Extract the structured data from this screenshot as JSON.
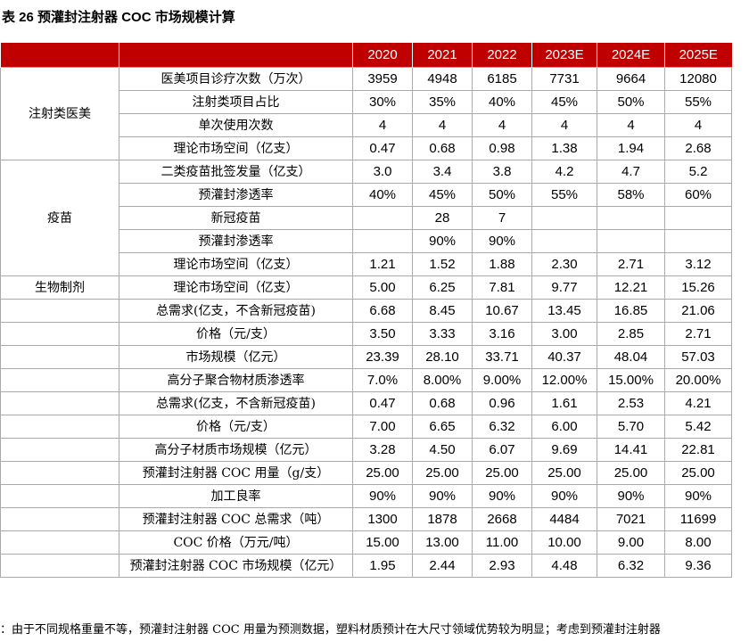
{
  "title": "表 26 预灌封注射器 COC 市场规模计算",
  "table": {
    "years": [
      "2020",
      "2021",
      "2022",
      "2023E",
      "2024E",
      "2025E"
    ],
    "groups": [
      {
        "label": "注射类医美",
        "rows": [
          {
            "label": "医美项目诊疗次数（万次）",
            "values": [
              "3959",
              "4948",
              "6185",
              "7731",
              "9664",
              "12080"
            ]
          },
          {
            "label": "注射类项目占比",
            "values": [
              "30%",
              "35%",
              "40%",
              "45%",
              "50%",
              "55%"
            ]
          },
          {
            "label": "单次使用次数",
            "values": [
              "4",
              "4",
              "4",
              "4",
              "4",
              "4"
            ]
          },
          {
            "label": "理论市场空间（亿支）",
            "values": [
              "0.47",
              "0.68",
              "0.98",
              "1.38",
              "1.94",
              "2.68"
            ]
          }
        ]
      },
      {
        "label": "疫苗",
        "rows": [
          {
            "label": "二类疫苗批签发量（亿支）",
            "values": [
              "3.0",
              "3.4",
              "3.8",
              "4.2",
              "4.7",
              "5.2"
            ]
          },
          {
            "label": "预灌封渗透率",
            "values": [
              "40%",
              "45%",
              "50%",
              "55%",
              "58%",
              "60%"
            ]
          },
          {
            "label": "新冠疫苗",
            "values": [
              null,
              "28",
              "7",
              null,
              null,
              null
            ]
          },
          {
            "label": "预灌封渗透率",
            "values": [
              null,
              "90%",
              "90%",
              null,
              null,
              null
            ]
          },
          {
            "label": "理论市场空间（亿支）",
            "values": [
              "1.21",
              "1.52",
              "1.88",
              "2.30",
              "2.71",
              "3.12"
            ]
          }
        ]
      },
      {
        "label": "生物制剂",
        "rows": [
          {
            "label": "理论市场空间（亿支）",
            "values": [
              "5.00",
              "6.25",
              "7.81",
              "9.77",
              "12.21",
              "15.26"
            ]
          }
        ]
      },
      {
        "rows": [
          {
            "label": "总需求(亿支，不含新冠疫苗)",
            "values": [
              "6.68",
              "8.45",
              "10.67",
              "13.45",
              "16.85",
              "21.06"
            ]
          },
          {
            "label": "价格（元/支）",
            "values": [
              "3.50",
              "3.33",
              "3.16",
              "3.00",
              "2.85",
              "2.71"
            ]
          },
          {
            "label": "市场规模（亿元）",
            "values": [
              "23.39",
              "28.10",
              "33.71",
              "40.37",
              "48.04",
              "57.03"
            ]
          },
          {
            "label": "高分子聚合物材质渗透率",
            "values": [
              "7.0%",
              "8.00%",
              "9.00%",
              "12.00%",
              "15.00%",
              "20.00%"
            ]
          },
          {
            "label": "总需求(亿支，不含新冠疫苗)",
            "values": [
              "0.47",
              "0.68",
              "0.96",
              "1.61",
              "2.53",
              "4.21"
            ]
          },
          {
            "label": "价格（元/支）",
            "values": [
              "7.00",
              "6.65",
              "6.32",
              "6.00",
              "5.70",
              "5.42"
            ]
          },
          {
            "label": "高分子材质市场规模（亿元）",
            "values": [
              "3.28",
              "4.50",
              "6.07",
              "9.69",
              "14.41",
              "22.81"
            ]
          },
          {
            "label": "预灌封注射器 COC 用量（g/支）",
            "values": [
              "25.00",
              "25.00",
              "25.00",
              "25.00",
              "25.00",
              "25.00"
            ]
          },
          {
            "label": "加工良率",
            "values": [
              "90%",
              "90%",
              "90%",
              "90%",
              "90%",
              "90%"
            ]
          },
          {
            "label": "预灌封注射器 COC 总需求（吨）",
            "values": [
              "1300",
              "1878",
              "2668",
              "4484",
              "7021",
              "11699"
            ]
          },
          {
            "label": "COC 价格（万元/吨）",
            "values": [
              "15.00",
              "13.00",
              "11.00",
              "10.00",
              "9.00",
              "8.00"
            ]
          },
          {
            "label": "预灌封注射器 COC 市场规模（亿元）",
            "values": [
              "1.95",
              "2.44",
              "2.93",
              "4.48",
              "6.32",
              "9.36"
            ]
          }
        ]
      }
    ]
  },
  "footer": "：由于不同规格重量不等，预灌封注射器 COC 用量为预测数据，塑料材质预计在大尺寸领域优势较为明显；考虑到预灌封注射器"
}
